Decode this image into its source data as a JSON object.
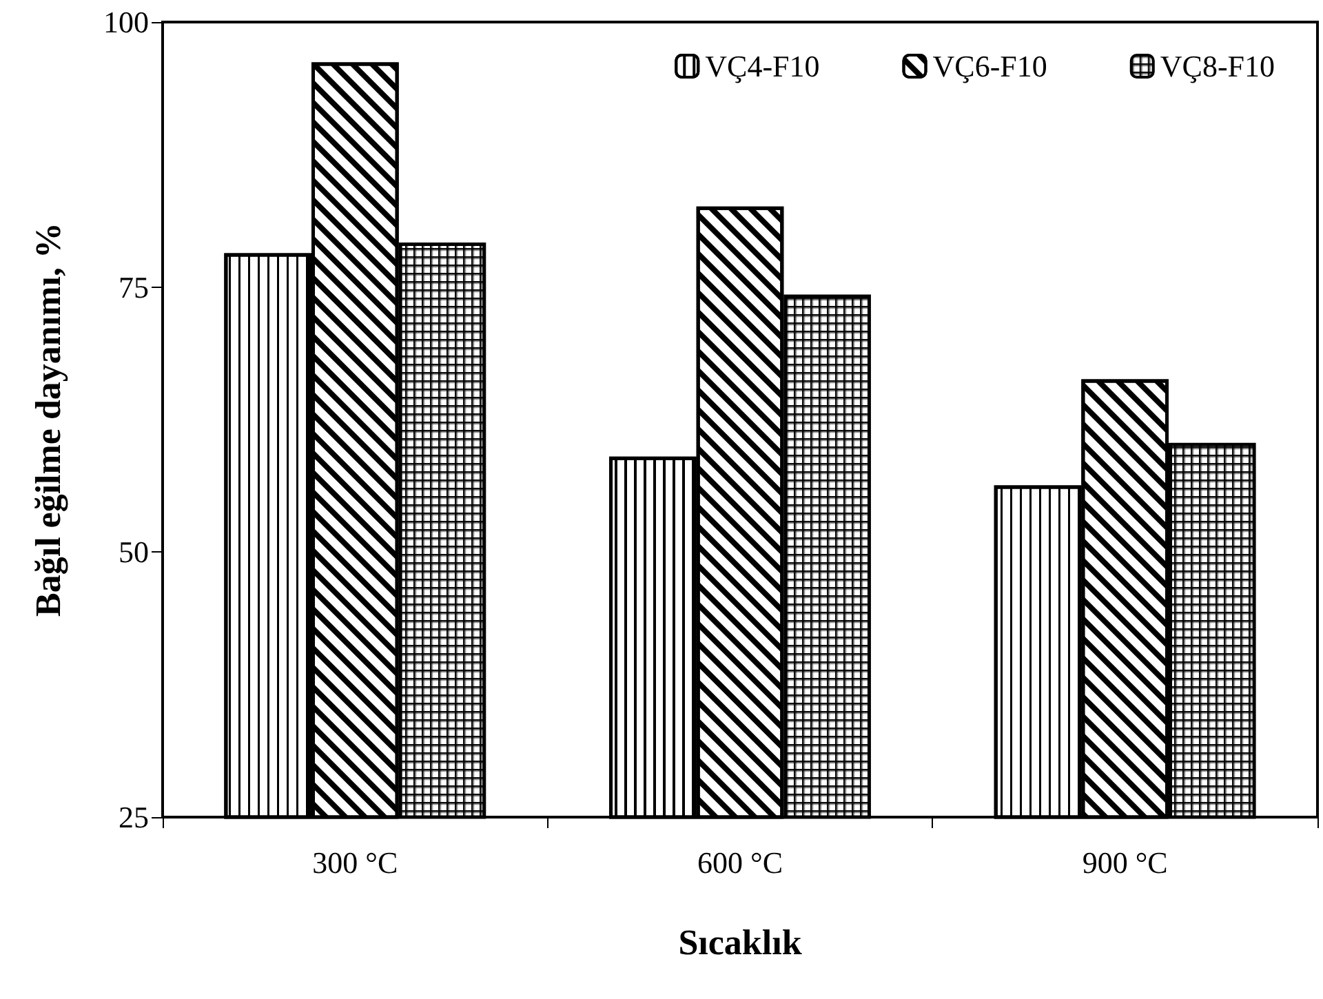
{
  "chart_data": {
    "type": "bar",
    "xlabel": "Sıcaklık",
    "ylabel": "Bağıl eğilme dayanımı, %",
    "categories": [
      "300 °C",
      "600 °C",
      "900 °C"
    ],
    "series": [
      {
        "name": "VÇ4-F10",
        "color": "#000000",
        "values": [
          78.2,
          59.0,
          56.3
        ]
      },
      {
        "name": "VÇ6-F10",
        "color": "#000000",
        "values": [
          96.2,
          82.6,
          66.3
        ]
      },
      {
        "name": "VÇ8-F10",
        "color": "#000000",
        "values": [
          79.2,
          74.3,
          60.3
        ]
      }
    ],
    "ylim": [
      25,
      100
    ],
    "yticks": [
      25,
      50,
      75,
      100
    ],
    "grid": false,
    "legend": "top right"
  }
}
